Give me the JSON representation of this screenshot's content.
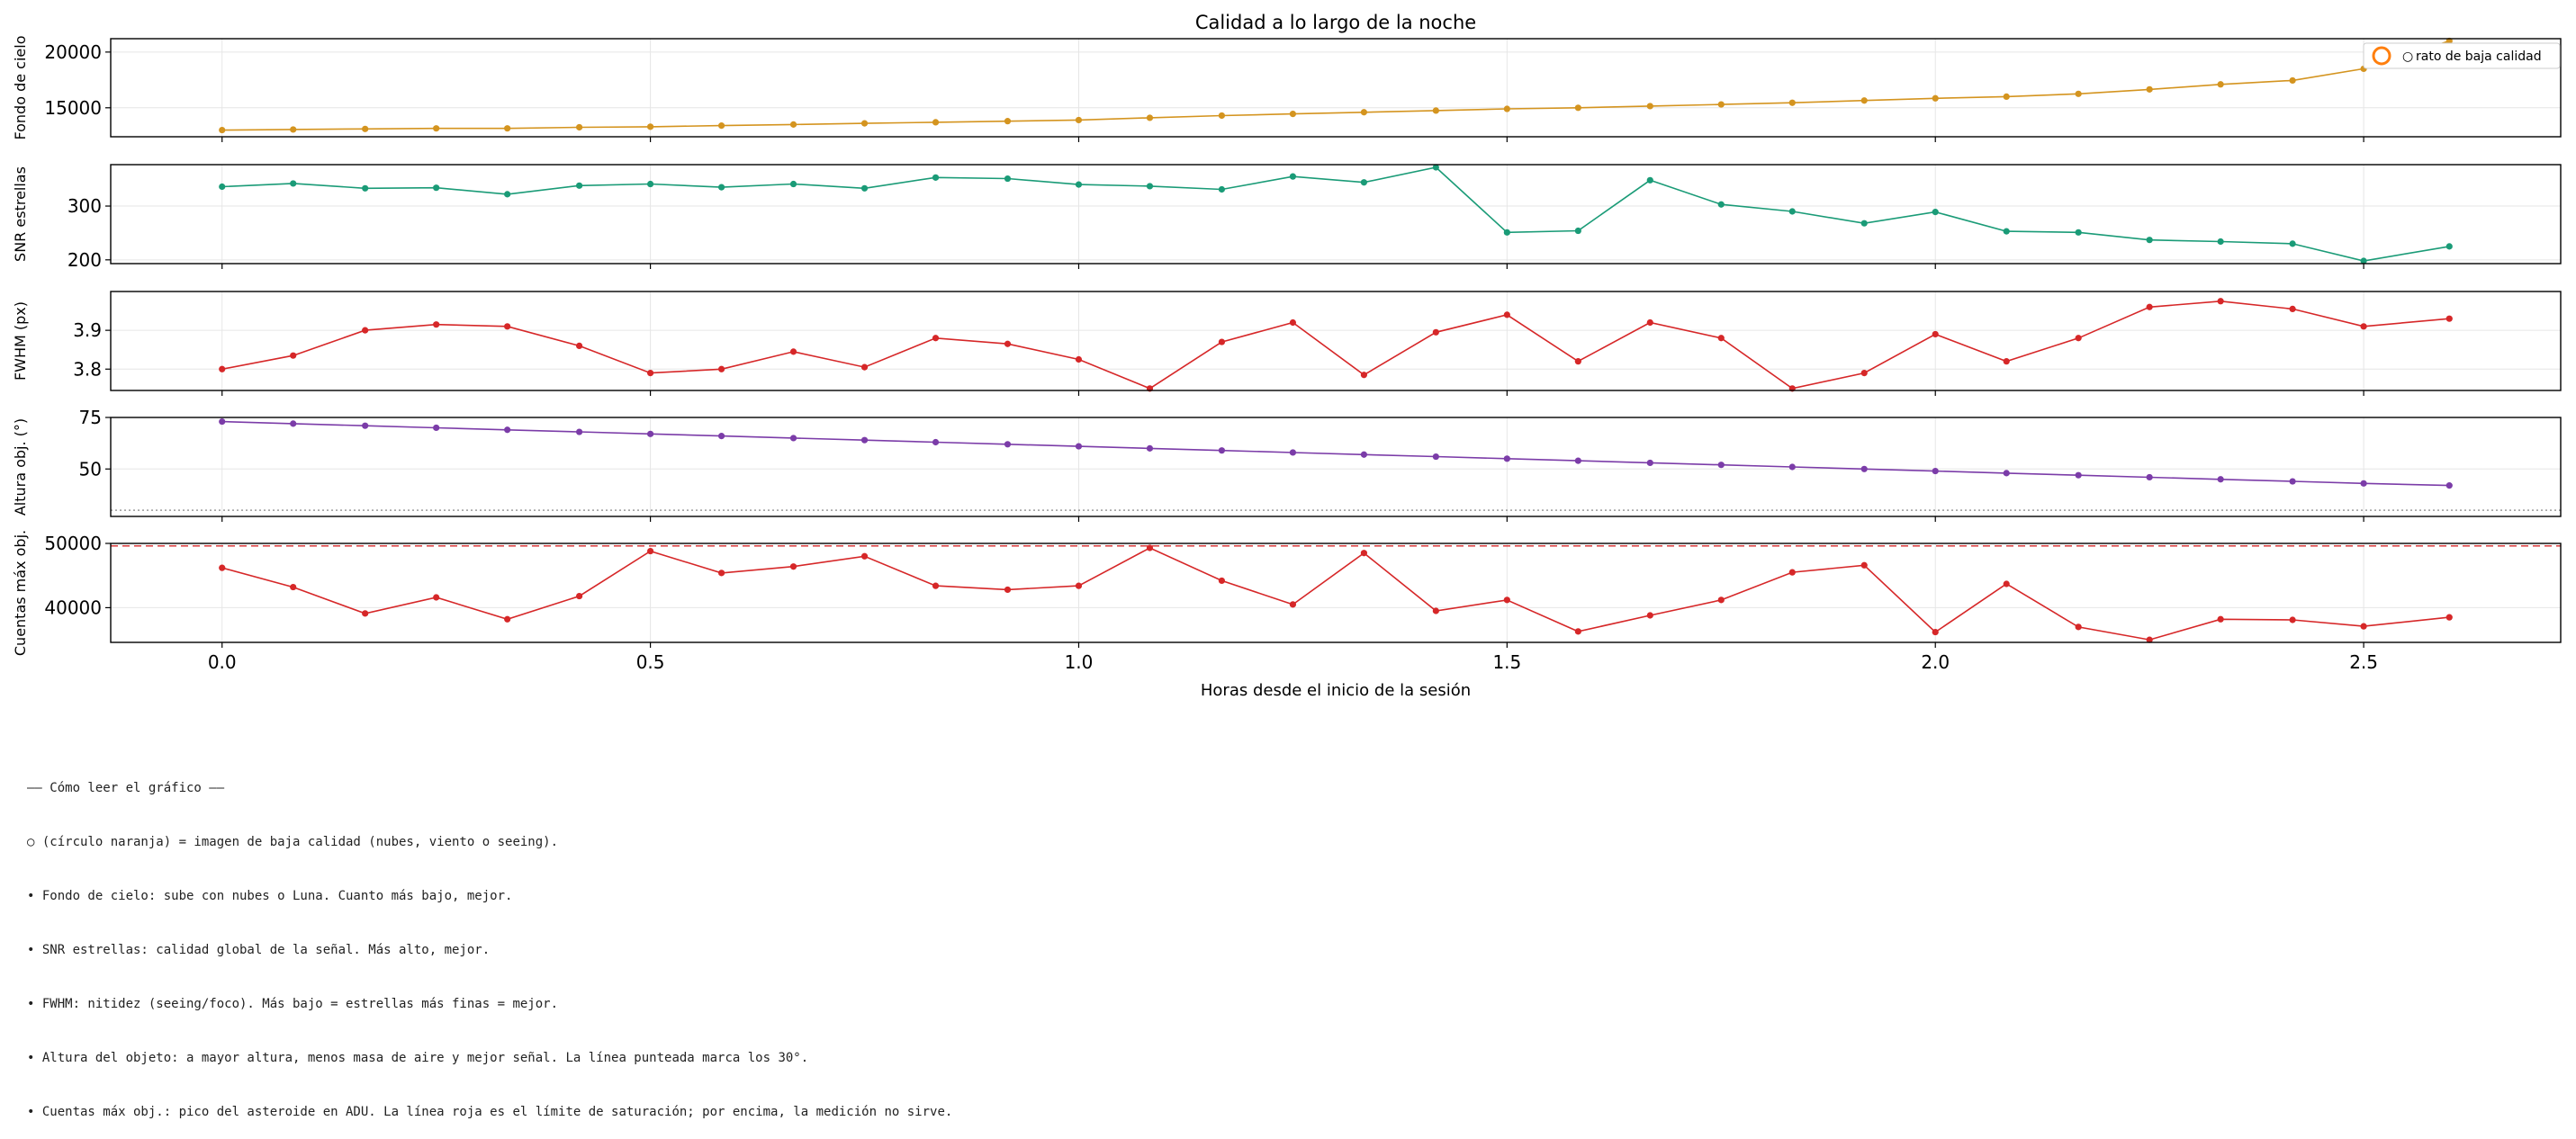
{
  "chart_data": {
    "type": "line",
    "title": "Calidad a lo largo de la noche",
    "xlabel": "Horas desde el inicio de la sesión",
    "xlim": [
      -0.13,
      2.73
    ],
    "xticks": [
      0.0,
      0.5,
      1.0,
      1.5,
      2.0,
      2.5
    ],
    "xtick_labels": [
      "0.0",
      "0.5",
      "1.0",
      "1.5",
      "2.0",
      "2.5"
    ],
    "x": [
      0.0,
      0.083,
      0.167,
      0.25,
      0.333,
      0.417,
      0.5,
      0.583,
      0.667,
      0.75,
      0.833,
      0.917,
      1.0,
      1.083,
      1.167,
      1.25,
      1.333,
      1.417,
      1.5,
      1.583,
      1.667,
      1.75,
      1.833,
      1.917,
      2.0,
      2.083,
      2.167,
      2.25,
      2.333,
      2.417,
      2.5,
      2.6
    ],
    "grid": true,
    "legend": {
      "location": "top-right",
      "marker": "○",
      "label": "rato de baja calidad"
    },
    "panels": [
      {
        "ylabel": "Fondo de cielo",
        "color": "#d4941f",
        "ylim": [
          12400,
          21200
        ],
        "yticks": [
          15000,
          20000
        ],
        "ytick_labels": [
          "15000",
          "20000"
        ],
        "values": [
          13000,
          13050,
          13100,
          13150,
          13150,
          13250,
          13300,
          13400,
          13500,
          13600,
          13700,
          13800,
          13900,
          14100,
          14300,
          14450,
          14600,
          14750,
          14900,
          15000,
          15150,
          15300,
          15450,
          15650,
          15850,
          16000,
          16250,
          16650,
          17100,
          17450,
          18500,
          21000
        ]
      },
      {
        "ylabel": "SNR estrellas",
        "color": "#1a9b77",
        "ylim": [
          193,
          377
        ],
        "yticks": [
          200,
          300
        ],
        "ytick_labels": [
          "200",
          "300"
        ],
        "values": [
          336,
          342,
          333,
          334,
          322,
          338,
          341,
          335,
          341,
          333,
          353,
          351,
          340,
          337,
          331,
          355,
          344,
          372,
          251,
          254,
          348,
          303,
          290,
          268,
          289,
          253,
          251,
          237,
          234,
          230,
          198,
          225
        ]
      },
      {
        "ylabel": "FWHM (px)",
        "color": "#d62728",
        "ylim": [
          3.745,
          4.0
        ],
        "yticks": [
          3.8,
          3.9
        ],
        "ytick_labels": [
          "3.8",
          "3.9"
        ],
        "values": [
          3.8,
          3.835,
          3.9,
          3.915,
          3.91,
          3.86,
          3.79,
          3.8,
          3.845,
          3.805,
          3.88,
          3.865,
          3.825,
          3.75,
          3.87,
          3.92,
          3.785,
          3.895,
          3.94,
          3.82,
          3.92,
          3.88,
          3.75,
          3.79,
          3.89,
          3.82,
          3.88,
          3.96,
          3.975,
          3.955,
          3.91,
          3.93
        ]
      },
      {
        "ylabel": "Altura obj. (°)",
        "color": "#7b3ca8",
        "ylim": [
          27,
          75
        ],
        "yticks": [
          50,
          75
        ],
        "ytick_labels": [
          "50",
          "75"
        ],
        "reference_line": {
          "value": 30,
          "style": "dotted",
          "color": "#999999"
        },
        "values": [
          73.0,
          72.0,
          71.0,
          70.0,
          69.0,
          68.0,
          67.0,
          66.0,
          65.0,
          64.0,
          63.0,
          62.0,
          61.0,
          60.0,
          59.0,
          58.0,
          57.0,
          56.0,
          55.0,
          54.0,
          53.0,
          52.0,
          51.0,
          50.0,
          49.0,
          48.0,
          47.0,
          46.0,
          45.0,
          44.0,
          43.0,
          42.0
        ]
      },
      {
        "ylabel": "Cuentas máx obj.",
        "color": "#d62728",
        "ylim": [
          34600,
          50000
        ],
        "yticks": [
          40000,
          50000
        ],
        "ytick_labels": [
          "40000",
          "50000"
        ],
        "reference_line": {
          "value": 49600,
          "style": "dashed",
          "color": "#d62728"
        },
        "values": [
          46200,
          43200,
          39100,
          41600,
          38200,
          41800,
          48800,
          45400,
          46400,
          48000,
          43400,
          42800,
          43400,
          49300,
          44200,
          40500,
          48500,
          39500,
          41200,
          36300,
          38800,
          41200,
          45500,
          46600,
          36200,
          43700,
          37000,
          35000,
          38200,
          38100,
          37100,
          38500
        ]
      }
    ]
  },
  "notes": [
    "—— Cómo leer el gráfico ——",
    "○ (círculo naranja) = imagen de baja calidad (nubes, viento o seeing).",
    "• Fondo de cielo: sube con nubes o Luna. Cuanto más bajo, mejor.",
    "• SNR estrellas: calidad global de la señal. Más alto, mejor.",
    "• FWHM: nitidez (seeing/foco). Más bajo = estrellas más finas = mejor.",
    "• Altura del objeto: a mayor altura, menos masa de aire y mejor señal. La línea punteada marca los 30°.",
    "• Cuentas máx obj.: pico del asteroide en ADU. La línea roja es el límite de saturación; por encima, la medición no sirve."
  ]
}
